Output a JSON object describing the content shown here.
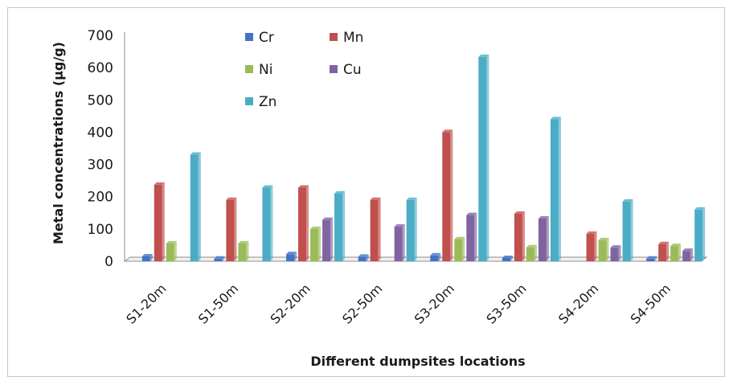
{
  "chart_data": {
    "type": "bar",
    "title": "",
    "xlabel": "Different dumpsites locations",
    "ylabel": "Metal concentrations (μg/g)",
    "ylim": [
      0,
      700
    ],
    "yticks": [
      0,
      100,
      200,
      300,
      400,
      500,
      600,
      700
    ],
    "categories": [
      "S1-20m",
      "S1-50m",
      "S2-20m",
      "S2-50m",
      "S3-20m",
      "S3-50m",
      "S4-20m",
      "S4-50m"
    ],
    "series": [
      {
        "name": "Cr",
        "color": "#4472c4",
        "values": [
          15,
          8,
          22,
          14,
          18,
          10,
          0,
          8
        ]
      },
      {
        "name": "Mn",
        "color": "#c0504d",
        "values": [
          237,
          190,
          228,
          190,
          400,
          147,
          85,
          53
        ]
      },
      {
        "name": "Ni",
        "color": "#9bbb59",
        "values": [
          55,
          55,
          100,
          0,
          68,
          43,
          65,
          47
        ]
      },
      {
        "name": "Cu",
        "color": "#8064a2",
        "values": [
          0,
          0,
          128,
          107,
          143,
          132,
          42,
          32
        ]
      },
      {
        "name": "Zn",
        "color": "#4bacc6",
        "values": [
          330,
          228,
          210,
          190,
          633,
          440,
          185,
          160
        ]
      }
    ],
    "legend_position": "top-left inside",
    "grid": false
  }
}
